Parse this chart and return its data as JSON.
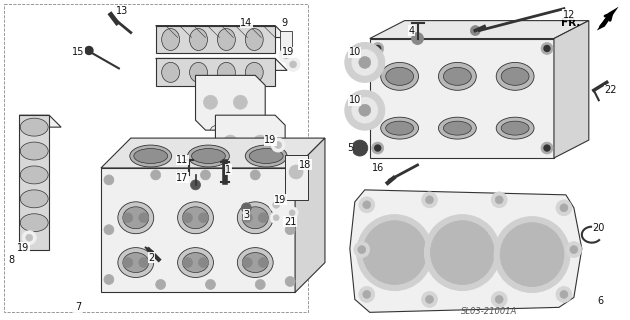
{
  "background_color": "#ffffff",
  "fig_width": 6.3,
  "fig_height": 3.2,
  "dpi": 100,
  "diagram_code": "SL03-21001A",
  "fr_label": "FR.",
  "line_color": "#333333",
  "text_color": "#111111",
  "gray_fill": "#d8d8d8",
  "light_fill": "#f0f0f0",
  "mid_fill": "#c0c0c0"
}
